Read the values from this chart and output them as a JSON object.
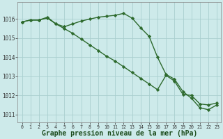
{
  "line1_x": [
    0,
    1,
    2,
    3,
    4,
    5,
    6,
    7,
    8,
    9,
    10,
    11,
    12,
    13,
    14,
    15,
    16,
    17,
    18,
    19,
    20,
    21,
    22,
    23
  ],
  "line1_y": [
    1015.85,
    1015.95,
    1015.95,
    1016.1,
    1015.75,
    1015.6,
    1015.75,
    1015.9,
    1016.0,
    1016.1,
    1016.15,
    1016.2,
    1016.3,
    1016.05,
    1015.55,
    1015.1,
    1014.0,
    1013.1,
    1012.85,
    1012.2,
    1011.85,
    1011.35,
    1011.25,
    1011.5
  ],
  "line2_x": [
    0,
    1,
    2,
    3,
    4,
    5,
    6,
    7,
    8,
    9,
    10,
    11,
    12,
    13,
    14,
    15,
    16,
    17,
    18,
    19,
    20,
    21,
    22,
    23
  ],
  "line2_y": [
    1015.85,
    1015.95,
    1015.95,
    1016.05,
    1015.75,
    1015.5,
    1015.25,
    1014.95,
    1014.65,
    1014.35,
    1014.05,
    1013.8,
    1013.5,
    1013.2,
    1012.9,
    1012.6,
    1012.3,
    1013.05,
    1012.75,
    1012.05,
    1012.0,
    1011.55,
    1011.5,
    1011.6
  ],
  "line_color": "#2d6a2d",
  "bg_color": "#cdeaea",
  "grid_color": "#aacfcf",
  "xlabel": "Graphe pression niveau de la mer (hPa)",
  "ylim": [
    1010.6,
    1016.9
  ],
  "yticks": [
    1011,
    1012,
    1013,
    1014,
    1015,
    1016
  ],
  "xticks": [
    0,
    1,
    2,
    3,
    4,
    5,
    6,
    7,
    8,
    9,
    10,
    11,
    12,
    13,
    14,
    15,
    16,
    17,
    18,
    19,
    20,
    21,
    22,
    23
  ],
  "marker": "D",
  "markersize": 2.2,
  "linewidth": 1.0,
  "xlabel_fontsize": 7.0,
  "tick_fontsize": 5.5
}
